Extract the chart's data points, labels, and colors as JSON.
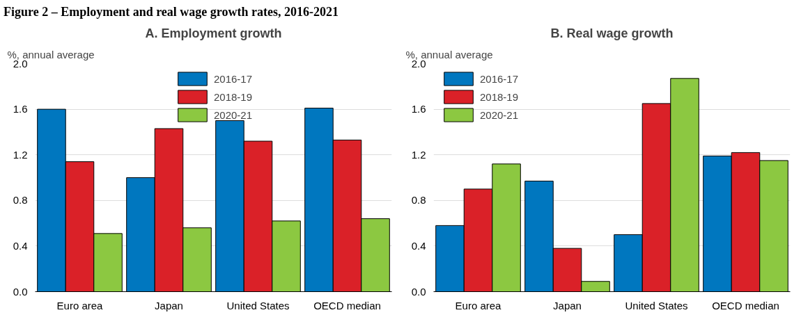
{
  "chart_data": [
    {
      "type": "bar",
      "title": "A. Employment growth",
      "ylabel": "%, annual average",
      "annotations": [
        "Figure 2 – Employment and real wage growth rates, 2016-2021"
      ],
      "categories": [
        "Euro area",
        "Japan",
        "United States",
        "OECD median"
      ],
      "series": [
        {
          "name": "2016-17",
          "color": "#0077bf",
          "values": [
            1.6,
            1.0,
            1.5,
            1.61
          ]
        },
        {
          "name": "2018-19",
          "color": "#da2128",
          "values": [
            1.14,
            1.43,
            1.32,
            1.33
          ]
        },
        {
          "name": "2020-21",
          "color": "#8cc841",
          "values": [
            0.51,
            0.56,
            0.62,
            0.64
          ]
        }
      ],
      "ylim": [
        0,
        2.0
      ],
      "yticks": [
        {
          "value": 0,
          "label": "0.0"
        },
        {
          "value": 0.4,
          "label": "0.4"
        },
        {
          "value": 0.8,
          "label": "0.8"
        },
        {
          "value": 1.2,
          "label": "1.2"
        },
        {
          "value": 1.6,
          "label": "1.6"
        },
        {
          "value": 2.0,
          "label": "2.0"
        }
      ],
      "grid": "y",
      "legend": "top"
    },
    {
      "type": "bar",
      "title": "B. Real wage growth",
      "ylabel": "%, annual average",
      "categories": [
        "Euro area",
        "Japan",
        "United States",
        "OECD median"
      ],
      "series": [
        {
          "name": "2016-17",
          "color": "#0077bf",
          "values": [
            0.58,
            0.97,
            0.5,
            1.19
          ]
        },
        {
          "name": "2018-19",
          "color": "#da2128",
          "values": [
            0.9,
            0.38,
            1.65,
            1.22
          ]
        },
        {
          "name": "2020-21",
          "color": "#8cc841",
          "values": [
            1.12,
            0.09,
            1.87,
            1.15
          ]
        }
      ],
      "ylim": [
        0,
        2.0
      ],
      "yticks": [
        {
          "value": 0,
          "label": "0.0"
        },
        {
          "value": 0.4,
          "label": "0.4"
        },
        {
          "value": 0.8,
          "label": "0.8"
        },
        {
          "value": 1.2,
          "label": "1.2"
        },
        {
          "value": 1.6,
          "label": "1.6"
        },
        {
          "value": 2.0,
          "label": "2.0"
        }
      ],
      "grid": "y",
      "legend": "top left"
    }
  ]
}
